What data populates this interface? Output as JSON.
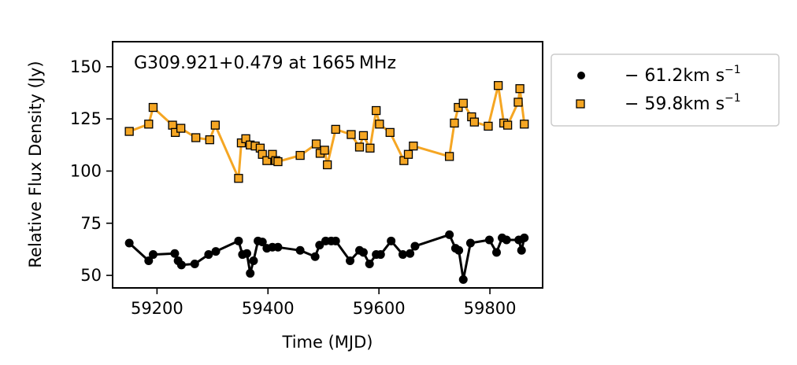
{
  "chart_data": {
    "type": "line",
    "title": "G309.921+0.479 at 1665 MHz",
    "xlabel": "Time (MJD)",
    "ylabel": "Relative Flux Density (Jy)",
    "xlim": [
      59120,
      59895
    ],
    "ylim": [
      44,
      162
    ],
    "x_ticks": [
      59200,
      59400,
      59600,
      59800
    ],
    "y_ticks": [
      50,
      75,
      100,
      125,
      150
    ],
    "grid": false,
    "legend_position": "outside-right",
    "series": [
      {
        "name": "−61.2km s⁻¹",
        "legend_text": "− 61.2km s",
        "legend_sup": "−1",
        "color": "#000000",
        "marker": "circle",
        "x": [
          59150,
          59185,
          59193,
          59232,
          59238,
          59244,
          59268,
          59293,
          59306,
          59347,
          59354,
          59362,
          59368,
          59374,
          59382,
          59390,
          59398,
          59408,
          59418,
          59458,
          59485,
          59493,
          59504,
          59514,
          59522,
          59548,
          59565,
          59572,
          59583,
          59595,
          59603,
          59622,
          59643,
          59656,
          59665,
          59727,
          59738,
          59744,
          59752,
          59765,
          59799,
          59812,
          59822,
          59830,
          59852,
          59857,
          59862
        ],
        "y": [
          65.5,
          57,
          60,
          60.5,
          57,
          55,
          55.5,
          60,
          61.5,
          66.5,
          60,
          60.5,
          51,
          57,
          66.5,
          66,
          63,
          63.5,
          63.5,
          62,
          59,
          64.5,
          66.5,
          66.5,
          66.5,
          57,
          62,
          61,
          55.5,
          60,
          60,
          66.5,
          60,
          60.5,
          64,
          69.5,
          63,
          62,
          48,
          65.5,
          67,
          61,
          68,
          67,
          67,
          62,
          68
        ]
      },
      {
        "name": "−59.8km s⁻¹",
        "legend_text": "− 59.8km s",
        "legend_sup": "−1",
        "color": "#f5a623",
        "marker": "square",
        "x": [
          59150,
          59185,
          59193,
          59228,
          59233,
          59243,
          59270,
          59295,
          59305,
          59347,
          59352,
          59360,
          59368,
          59377,
          59386,
          59390,
          59398,
          59408,
          59414,
          59418,
          59458,
          59487,
          59494,
          59502,
          59507,
          59522,
          59550,
          59565,
          59572,
          59584,
          59595,
          59601,
          59620,
          59645,
          59653,
          59662,
          59727,
          59736,
          59743,
          59752,
          59767,
          59772,
          59797,
          59815,
          59825,
          59832,
          59851,
          59854,
          59862
        ],
        "y": [
          119,
          122.5,
          130.5,
          122,
          118.5,
          120.5,
          116,
          115,
          122,
          96.5,
          113.5,
          115.5,
          112.5,
          112,
          111,
          108,
          105,
          108,
          105,
          104.5,
          107.5,
          113,
          108.5,
          110,
          103,
          120,
          117.5,
          111.5,
          117,
          111,
          129,
          122.5,
          118.5,
          105,
          108,
          112,
          107,
          123,
          130.5,
          132.5,
          126,
          123.5,
          121.5,
          141,
          123,
          122,
          133,
          139.5,
          122.5
        ]
      }
    ]
  }
}
